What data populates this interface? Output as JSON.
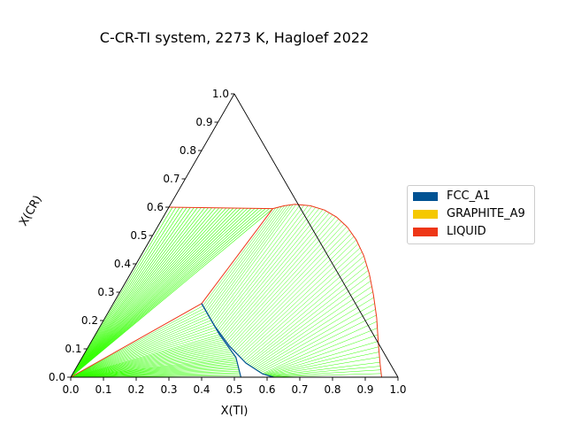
{
  "chart_data": {
    "type": "ternary-phase-diagram",
    "title": "C-CR-TI system, 2273 K, Hagloef 2022",
    "xlabel": "X(TI)",
    "ylabel": "X(CR)",
    "ticks": [
      "0.0",
      "0.1",
      "0.2",
      "0.3",
      "0.4",
      "0.5",
      "0.6",
      "0.7",
      "0.8",
      "0.9",
      "1.0"
    ],
    "legend": [
      {
        "name": "FCC_A1",
        "color": "#005293"
      },
      {
        "name": "GRAPHITE_A9",
        "color": "#f5c800"
      },
      {
        "name": "LIQUID",
        "color": "#ee3616"
      }
    ],
    "tieline_color": "#33ff00",
    "boundaries": {
      "liquid_main": [
        [
          0.32,
          0.595
        ],
        [
          0.35,
          0.605
        ],
        [
          0.38,
          0.61
        ],
        [
          0.43,
          0.605
        ],
        [
          0.48,
          0.59
        ],
        [
          0.53,
          0.565
        ],
        [
          0.58,
          0.53
        ],
        [
          0.63,
          0.485
        ],
        [
          0.68,
          0.43
        ],
        [
          0.73,
          0.365
        ],
        [
          0.78,
          0.29
        ],
        [
          0.83,
          0.21
        ],
        [
          0.88,
          0.12
        ],
        [
          0.92,
          0.05
        ],
        [
          0.95,
          0.0
        ]
      ],
      "liquid_c_side_upper": [
        [
          0.0,
          0.6
        ],
        [
          0.32,
          0.595
        ]
      ],
      "liquid_c_side_lower": [
        [
          0.0,
          0.6
        ],
        [
          0.0,
          0.0
        ]
      ],
      "liquid_to_fcc_corner": [
        [
          0.32,
          0.595
        ],
        [
          0.27,
          0.26
        ]
      ],
      "liquid_diag": [
        [
          0.27,
          0.26
        ],
        [
          0.0,
          0.0
        ]
      ],
      "fcc_upper": [
        [
          0.27,
          0.26
        ],
        [
          0.35,
          0.18
        ],
        [
          0.43,
          0.11
        ],
        [
          0.51,
          0.05
        ],
        [
          0.58,
          0.012
        ],
        [
          0.62,
          0.0
        ]
      ],
      "fcc_lower": [
        [
          0.27,
          0.26
        ],
        [
          0.38,
          0.15
        ],
        [
          0.47,
          0.07
        ],
        [
          0.52,
          0.0
        ]
      ]
    },
    "tielines": {
      "liq_fcc_count": 55,
      "c_fcc_count": 40,
      "c_liq_count": 30
    }
  }
}
